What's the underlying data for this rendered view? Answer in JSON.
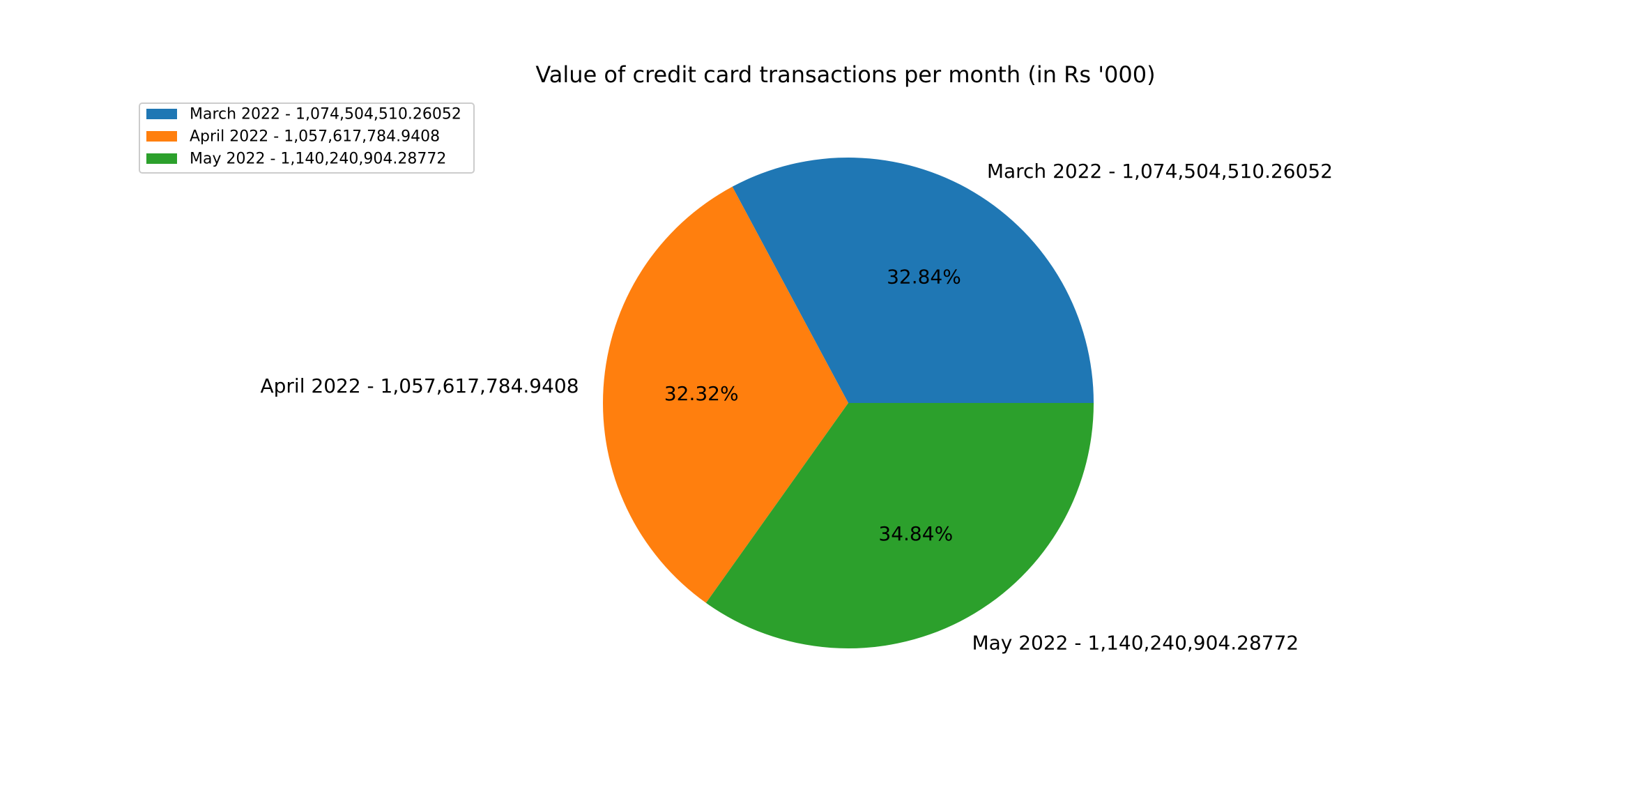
{
  "chart_data": {
    "type": "pie",
    "title": "Value of credit card transactions per month (in Rs '000)",
    "slices": [
      {
        "label": "March 2022 - 1,074,504,510.26052",
        "value": 1074504510.26052,
        "percent_label": "32.84%",
        "color": "#1f77b4"
      },
      {
        "label": "April 2022 - 1,057,617,784.9408",
        "value": 1057617784.9408,
        "percent_label": "32.32%",
        "color": "#ff7f0e"
      },
      {
        "label": "May 2022 - 1,140,240,904.28772",
        "value": 1140240904.28772,
        "percent_label": "34.84%",
        "color": "#2ca02c"
      }
    ],
    "start_angle": 0,
    "direction": "counterclockwise",
    "legend": {
      "placement": "upper-left",
      "entries": [
        "March 2022 - 1,074,504,510.26052",
        "April 2022 - 1,057,617,784.9408",
        "May 2022 - 1,140,240,904.28772"
      ]
    }
  }
}
